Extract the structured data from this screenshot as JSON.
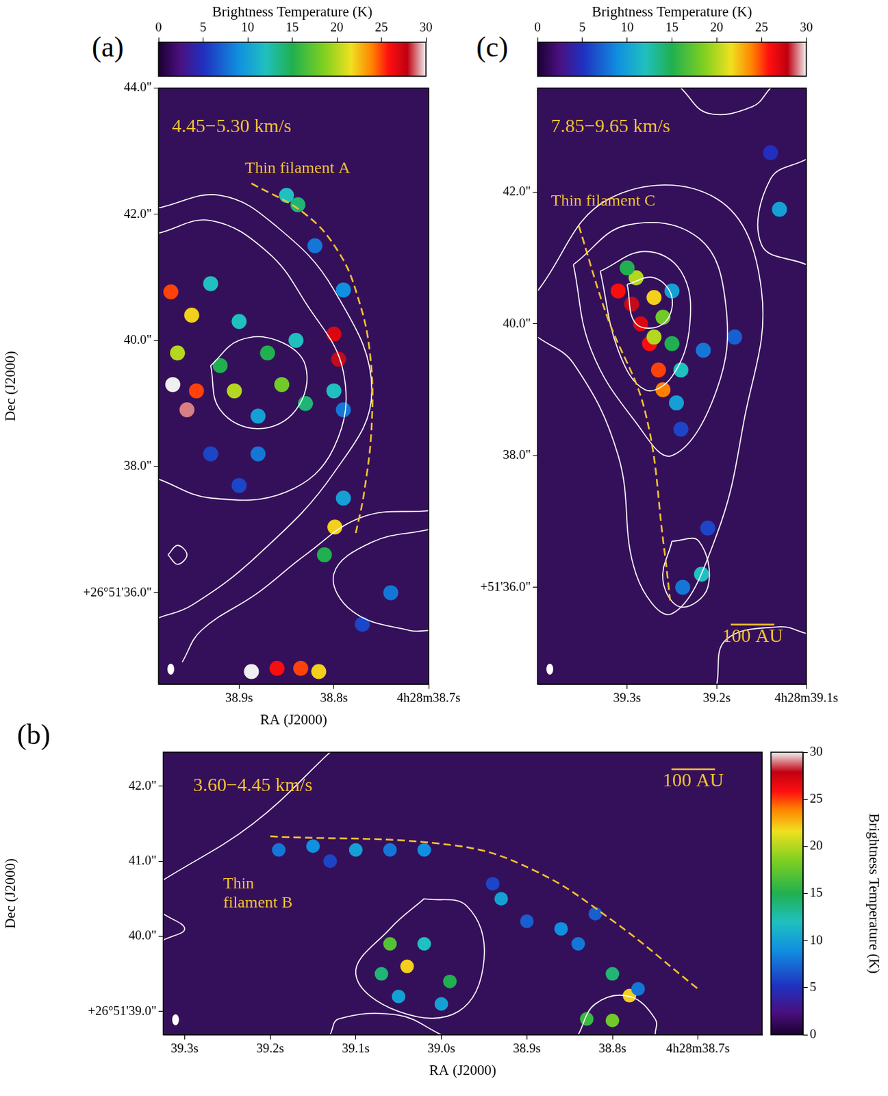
{
  "chart_data": [
    {
      "panel": "(a)",
      "type": "scatter",
      "title": "4.45−5.30 km/s",
      "annotations": [
        "Thin filament A"
      ],
      "x_label": "RA (J2000)",
      "y_label": "Dec (J2000)",
      "xlim": [
        38.985,
        38.7
      ],
      "xticks": [
        {
          "value": 38.9,
          "label": "38.9s"
        },
        {
          "value": 38.8,
          "label": "38.8s"
        },
        {
          "value": 38.7,
          "label": "4h28m38.7s"
        }
      ],
      "ylim": [
        34.55,
        44.0
      ],
      "yticks": [
        {
          "value": 44,
          "label": "44.0\""
        },
        {
          "value": 42,
          "label": "42.0\""
        },
        {
          "value": 40,
          "label": "40.0\""
        },
        {
          "value": 38,
          "label": "38.0\""
        },
        {
          "value": 36,
          "label": "+26°51'36.0\""
        }
      ],
      "grid": false,
      "points": [
        [
          38.972,
          40.77,
          25
        ],
        [
          38.97,
          39.3,
          30
        ],
        [
          38.955,
          38.9,
          29
        ],
        [
          38.965,
          39.8,
          20
        ],
        [
          38.95,
          40.4,
          22
        ],
        [
          38.945,
          39.2,
          25
        ],
        [
          38.93,
          40.9,
          12
        ],
        [
          38.92,
          39.6,
          15
        ],
        [
          38.905,
          39.2,
          20
        ],
        [
          38.9,
          40.3,
          12
        ],
        [
          38.88,
          38.8,
          10
        ],
        [
          38.87,
          39.8,
          15
        ],
        [
          38.855,
          39.3,
          18
        ],
        [
          38.84,
          40.0,
          12
        ],
        [
          38.83,
          39.0,
          14
        ],
        [
          38.8,
          40.1,
          27
        ],
        [
          38.795,
          39.7,
          28
        ],
        [
          38.8,
          39.2,
          12
        ],
        [
          38.79,
          38.9,
          8
        ],
        [
          38.838,
          42.15,
          14
        ],
        [
          38.85,
          42.3,
          12
        ],
        [
          38.82,
          41.5,
          8
        ],
        [
          38.79,
          40.8,
          9
        ],
        [
          38.799,
          37.04,
          22
        ],
        [
          38.81,
          36.6,
          15
        ],
        [
          38.79,
          37.5,
          10
        ],
        [
          38.74,
          36.0,
          8
        ],
        [
          38.77,
          35.5,
          6
        ],
        [
          38.887,
          34.75,
          30
        ],
        [
          38.86,
          34.8,
          26
        ],
        [
          38.835,
          34.8,
          25
        ],
        [
          38.816,
          34.75,
          22
        ],
        [
          38.9,
          37.7,
          6
        ],
        [
          38.88,
          38.2,
          8
        ],
        [
          38.93,
          38.2,
          6
        ]
      ],
      "contours": [
        [
          [
            38.93,
            39.6
          ],
          [
            38.9,
            40.0
          ],
          [
            38.86,
            40.0
          ],
          [
            38.83,
            39.6
          ],
          [
            38.84,
            38.9
          ],
          [
            38.88,
            38.6
          ],
          [
            38.92,
            38.9
          ],
          [
            38.93,
            39.6
          ]
        ],
        [
          [
            38.985,
            41.7
          ],
          [
            38.93,
            41.9
          ],
          [
            38.87,
            41.4
          ],
          [
            38.83,
            40.6
          ],
          [
            38.79,
            39.5
          ],
          [
            38.8,
            38.3
          ],
          [
            38.85,
            37.6
          ],
          [
            38.93,
            37.5
          ],
          [
            38.985,
            37.8
          ]
        ],
        [
          [
            38.985,
            42.1
          ],
          [
            38.92,
            42.3
          ],
          [
            38.86,
            41.8
          ],
          [
            38.8,
            40.8
          ],
          [
            38.76,
            39.2
          ],
          [
            38.8,
            37.9
          ],
          [
            38.88,
            36.6
          ],
          [
            38.95,
            35.8
          ],
          [
            38.985,
            35.6
          ]
        ],
        [
          [
            38.7,
            37.0
          ],
          [
            38.76,
            36.8
          ],
          [
            38.8,
            36.3
          ],
          [
            38.78,
            35.7
          ],
          [
            38.72,
            35.4
          ],
          [
            38.7,
            35.4
          ]
        ],
        [
          [
            38.7,
            37.3
          ],
          [
            38.77,
            37.2
          ],
          [
            38.83,
            36.6
          ],
          [
            38.88,
            36.0
          ],
          [
            38.94,
            35.4
          ],
          [
            38.96,
            34.9
          ]
        ],
        [
          [
            38.975,
            36.6
          ],
          [
            38.965,
            36.75
          ],
          [
            38.955,
            36.6
          ],
          [
            38.965,
            36.45
          ],
          [
            38.975,
            36.6
          ]
        ]
      ],
      "filament": [
        [
          38.887,
          42.49
        ],
        [
          38.83,
          42.0
        ],
        [
          38.795,
          41.4
        ],
        [
          38.775,
          40.7
        ],
        [
          38.762,
          39.8
        ],
        [
          38.76,
          38.7
        ],
        [
          38.768,
          37.6
        ],
        [
          38.777,
          36.94
        ]
      ],
      "colorbar": {
        "label": "Brightness Temperature (K)",
        "lim": [
          0,
          30
        ],
        "ticks": [
          0,
          5,
          10,
          15,
          20,
          25,
          30
        ]
      }
    },
    {
      "panel": "(b)",
      "type": "scatter",
      "title": "3.60−4.45 km/s",
      "annotations": [
        "Thin filament B"
      ],
      "scale_bar": "100 AU",
      "x_label": "RA (J2000)",
      "y_label": "Dec (J2000)",
      "xlim": [
        39.325,
        38.625
      ],
      "xticks": [
        {
          "value": 39.3,
          "label": "39.3s"
        },
        {
          "value": 39.2,
          "label": "39.2s"
        },
        {
          "value": 39.1,
          "label": "39.1s"
        },
        {
          "value": 39.0,
          "label": "39.0s"
        },
        {
          "value": 38.9,
          "label": "38.9s"
        },
        {
          "value": 38.8,
          "label": "38.8s"
        },
        {
          "value": 38.7,
          "label": "4h28m38.7s"
        }
      ],
      "ylim": [
        38.69,
        42.45
      ],
      "yticks": [
        {
          "value": 42,
          "label": "42.0\""
        },
        {
          "value": 41,
          "label": "41.0\""
        },
        {
          "value": 40,
          "label": "40.0\""
        },
        {
          "value": 39,
          "label": "+26°51'39.0\""
        }
      ],
      "grid": false,
      "points": [
        [
          39.19,
          41.15,
          8
        ],
        [
          39.15,
          41.2,
          9
        ],
        [
          39.1,
          41.15,
          10
        ],
        [
          39.06,
          41.15,
          8
        ],
        [
          39.02,
          41.15,
          9
        ],
        [
          39.13,
          41.0,
          6
        ],
        [
          39.06,
          39.9,
          17
        ],
        [
          39.04,
          39.6,
          22
        ],
        [
          39.07,
          39.5,
          14
        ],
        [
          39.02,
          39.9,
          12
        ],
        [
          38.99,
          39.4,
          15
        ],
        [
          39.0,
          39.1,
          10
        ],
        [
          39.05,
          39.2,
          10
        ],
        [
          38.93,
          40.5,
          10
        ],
        [
          38.9,
          40.2,
          7
        ],
        [
          38.86,
          40.1,
          9
        ],
        [
          38.84,
          39.9,
          8
        ],
        [
          38.82,
          40.3,
          7
        ],
        [
          38.8,
          39.5,
          14
        ],
        [
          38.78,
          39.21,
          22
        ],
        [
          38.8,
          38.88,
          18
        ],
        [
          38.77,
          39.3,
          8
        ],
        [
          38.83,
          38.9,
          16
        ],
        [
          38.94,
          40.7,
          6
        ]
      ],
      "contours": [
        [
          [
            39.02,
            40.5
          ],
          [
            38.97,
            40.4
          ],
          [
            38.95,
            39.7
          ],
          [
            38.98,
            39.0
          ],
          [
            39.05,
            39.0
          ],
          [
            39.1,
            39.5
          ],
          [
            39.06,
            40.1
          ],
          [
            39.02,
            40.5
          ]
        ],
        [
          [
            39.325,
            40.75
          ],
          [
            39.22,
            41.5
          ],
          [
            39.13,
            42.45
          ]
        ],
        [
          [
            39.13,
            38.69
          ],
          [
            39.12,
            38.9
          ],
          [
            39.05,
            38.95
          ],
          [
            39.0,
            38.69
          ]
        ],
        [
          [
            38.84,
            38.69
          ],
          [
            38.82,
            39.1
          ],
          [
            38.78,
            39.2
          ],
          [
            38.75,
            38.9
          ],
          [
            38.75,
            38.69
          ]
        ],
        [
          [
            39.325,
            40.3
          ],
          [
            39.3,
            40.1
          ],
          [
            39.325,
            39.95
          ]
        ]
      ],
      "filament": [
        [
          39.2,
          41.33
        ],
        [
          38.985,
          41.21
        ],
        [
          38.892,
          40.88
        ],
        [
          38.8,
          40.21
        ],
        [
          38.7,
          39.3
        ]
      ],
      "colorbar": {
        "label": "Brightness Temperature (K)",
        "lim": [
          0,
          30
        ],
        "ticks": [
          0,
          5,
          10,
          15,
          20,
          25,
          30
        ]
      }
    },
    {
      "panel": "(c)",
      "type": "scatter",
      "title": "7.85−9.65 km/s",
      "annotations": [
        "Thin filament C"
      ],
      "scale_bar": "100 AU",
      "xlim": [
        39.4,
        39.1
      ],
      "xticks": [
        {
          "value": 39.3,
          "label": "39.3s"
        },
        {
          "value": 39.2,
          "label": "39.2s"
        },
        {
          "value": 39.1,
          "label": "4h28m39.1s"
        }
      ],
      "ylim": [
        34.53,
        43.58
      ],
      "yticks": [
        {
          "value": 42,
          "label": "42.0\""
        },
        {
          "value": 40,
          "label": "40.0\""
        },
        {
          "value": 38,
          "label": "38.0\""
        },
        {
          "value": 36,
          "label": "+51'36.0\""
        }
      ],
      "grid": false,
      "points": [
        [
          39.31,
          40.5,
          26
        ],
        [
          39.295,
          40.3,
          28
        ],
        [
          39.285,
          40.0,
          27
        ],
        [
          39.275,
          39.7,
          26
        ],
        [
          39.265,
          39.3,
          25
        ],
        [
          39.26,
          39.0,
          24
        ],
        [
          39.29,
          40.7,
          20
        ],
        [
          39.27,
          40.4,
          22
        ],
        [
          39.26,
          40.1,
          18
        ],
        [
          39.25,
          39.7,
          15
        ],
        [
          39.24,
          39.3,
          12
        ],
        [
          39.27,
          39.8,
          20
        ],
        [
          39.3,
          40.85,
          15
        ],
        [
          39.25,
          40.5,
          10
        ],
        [
          39.245,
          38.8,
          10
        ],
        [
          39.24,
          38.4,
          6
        ],
        [
          39.215,
          39.6,
          8
        ],
        [
          39.18,
          39.8,
          7
        ],
        [
          39.238,
          36.0,
          8
        ],
        [
          39.217,
          36.2,
          12
        ],
        [
          39.21,
          36.9,
          6
        ],
        [
          39.13,
          41.74,
          10
        ],
        [
          39.14,
          42.6,
          5
        ]
      ],
      "contours": [
        [
          [
            39.3,
            40.6
          ],
          [
            39.27,
            40.7
          ],
          [
            39.25,
            40.4
          ],
          [
            39.26,
            40.0
          ],
          [
            39.29,
            40.0
          ],
          [
            39.3,
            40.6
          ]
        ],
        [
          [
            39.33,
            40.8
          ],
          [
            39.28,
            41.1
          ],
          [
            39.24,
            40.8
          ],
          [
            39.23,
            40.0
          ],
          [
            39.25,
            39.2
          ],
          [
            39.28,
            39.0
          ],
          [
            39.31,
            39.6
          ],
          [
            39.33,
            40.8
          ]
        ],
        [
          [
            39.36,
            40.9
          ],
          [
            39.3,
            41.5
          ],
          [
            39.22,
            41.3
          ],
          [
            39.19,
            40.3
          ],
          [
            39.2,
            39.0
          ],
          [
            39.25,
            38.0
          ],
          [
            39.29,
            38.5
          ],
          [
            39.34,
            39.6
          ],
          [
            39.36,
            40.9
          ]
        ],
        [
          [
            39.4,
            40.5
          ],
          [
            39.32,
            41.9
          ],
          [
            39.2,
            41.9
          ],
          [
            39.15,
            40.5
          ],
          [
            39.17,
            38.5
          ],
          [
            39.2,
            36.8
          ],
          [
            39.25,
            35.6
          ],
          [
            39.29,
            36.2
          ],
          [
            39.31,
            38.0
          ],
          [
            39.36,
            39.4
          ],
          [
            39.4,
            39.8
          ]
        ],
        [
          [
            39.25,
            36.7
          ],
          [
            39.22,
            36.7
          ],
          [
            39.21,
            36.0
          ],
          [
            39.24,
            35.7
          ],
          [
            39.26,
            36.1
          ],
          [
            39.25,
            36.7
          ]
        ],
        [
          [
            39.2,
            34.53
          ],
          [
            39.19,
            35.2
          ],
          [
            39.13,
            35.4
          ],
          [
            39.1,
            35.3
          ]
        ],
        [
          [
            39.24,
            43.58
          ],
          [
            39.21,
            43.2
          ],
          [
            39.16,
            43.3
          ],
          [
            39.14,
            43.58
          ]
        ],
        [
          [
            39.1,
            42.5
          ],
          [
            39.14,
            42.2
          ],
          [
            39.15,
            41.2
          ],
          [
            39.1,
            40.9
          ]
        ]
      ],
      "filament": [
        [
          39.354,
          41.49
        ],
        [
          39.322,
          40.1
        ],
        [
          39.28,
          38.67
        ],
        [
          39.259,
          36.62
        ],
        [
          39.252,
          35.8
        ]
      ],
      "colorbar": {
        "label": "Brightness Temperature (K)",
        "lim": [
          0,
          30
        ],
        "ticks": [
          0,
          5,
          10,
          15,
          20,
          25,
          30
        ]
      }
    }
  ]
}
